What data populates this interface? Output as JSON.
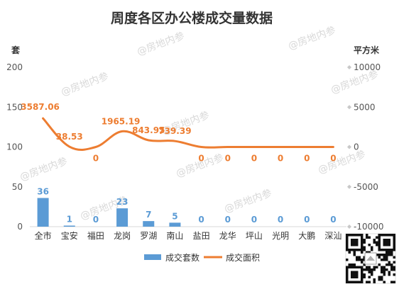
{
  "watermark_text": "@房地内参",
  "chart_data": {
    "type": "bar",
    "title": "周度各区办公楼成交量数据",
    "y_left_unit": "套",
    "y_right_unit": "平方米",
    "categories": [
      "全市",
      "宝安",
      "福田",
      "龙岗",
      "罗湖",
      "南山",
      "盐田",
      "龙华",
      "坪山",
      "光明",
      "大鹏",
      "深汕"
    ],
    "y_left_ticks": [
      0,
      50,
      100,
      150,
      200
    ],
    "y_right_ticks": [
      -10000,
      -5000,
      0,
      5000,
      10000
    ],
    "ylim_left": [
      0,
      200
    ],
    "ylim_right": [
      -10000,
      10000
    ],
    "legend_position": "bottom",
    "grid": false,
    "series": [
      {
        "name": "成交套数",
        "type": "bar",
        "axis": "left",
        "color": "#5b9bd5",
        "values": [
          36,
          1,
          0,
          23,
          7,
          5,
          0,
          0,
          0,
          0,
          0,
          0
        ],
        "labels": [
          "36",
          "1",
          "0",
          "23",
          "7",
          "5",
          "0",
          "0",
          "0",
          "0",
          "0",
          "0"
        ]
      },
      {
        "name": "成交面积",
        "type": "line",
        "axis": "right",
        "color": "#ed7d31",
        "values": [
          3587.06,
          38.53,
          0,
          1965.19,
          843.95,
          739.39,
          0,
          0,
          0,
          0,
          0,
          0
        ],
        "labels": [
          "3587.06",
          "38.53",
          "0",
          "1965.19",
          "843.95",
          "739.39",
          "0",
          "0",
          "0",
          "0",
          "0",
          "0"
        ]
      }
    ]
  }
}
